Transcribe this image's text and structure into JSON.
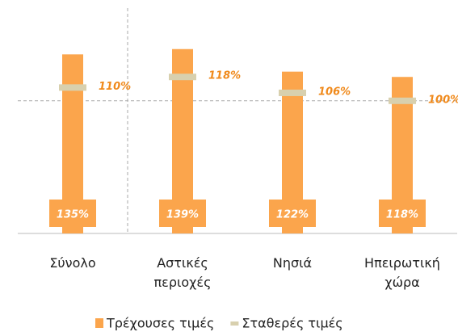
{
  "chart_data": {
    "type": "bar",
    "categories": [
      "Σύνολο",
      "Αστικές περιοχές",
      "Νησιά",
      "Ηπειρωτική χώρα"
    ],
    "series": [
      {
        "name": "Τρέχουσες τιμές",
        "color": "#fba54c",
        "values": [
          135,
          139,
          122,
          118
        ],
        "value_labels": [
          "135%",
          "139%",
          "122%",
          "118%"
        ]
      },
      {
        "name": "Σταθερές τιμές",
        "color": "#d8d0ae",
        "values": [
          110,
          118,
          106,
          100
        ],
        "value_labels": [
          "110%",
          "118%",
          "106%",
          "100%"
        ],
        "marker": "dash"
      }
    ],
    "ylim": [
      0,
      176
    ],
    "reference_line": 100,
    "legend": "bottom"
  }
}
